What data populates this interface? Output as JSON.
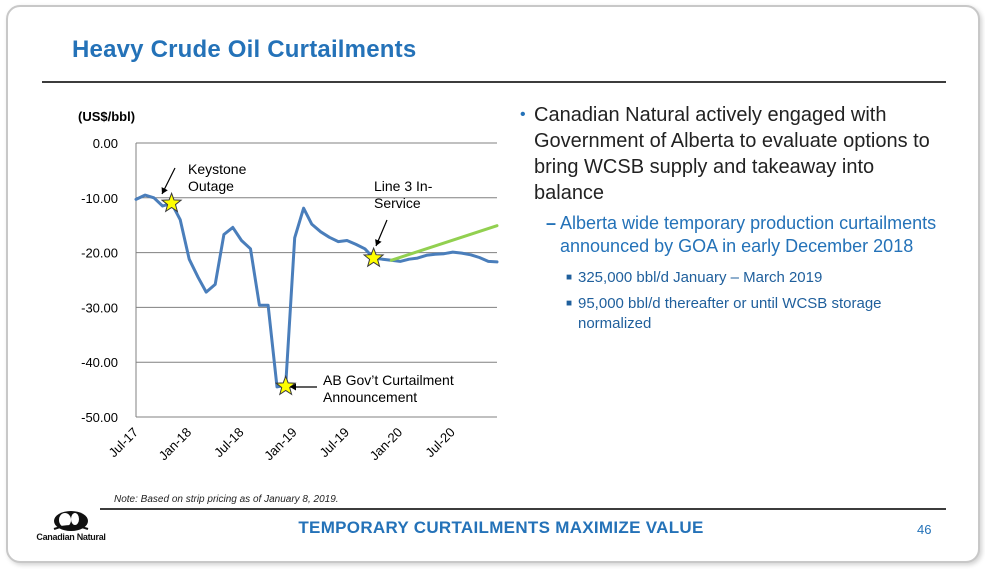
{
  "slide": {
    "title": "Heavy Crude Oil Curtailments",
    "note": "Note: Based on strip pricing as of January 8, 2019.",
    "footer": "TEMPORARY CURTAILMENTS MAXIMIZE VALUE",
    "page_number": "46",
    "logo_text": "Canadian Natural"
  },
  "bullets": {
    "main": "Canadian Natural actively engaged with Government of Alberta to evaluate options to bring WCSB supply and takeaway into balance",
    "sub": "Alberta wide temporary production curtailments announced by GOA in early December 2018",
    "subsub": [
      "325,000 bbl/d January – March 2019",
      "95,000 bbl/d thereafter or until WCSB storage normalized"
    ]
  },
  "colors": {
    "accent": "#2472b8",
    "series_main": "#4a7ebb",
    "series_forecast": "#92d050",
    "star": "#ffff00"
  },
  "chart_data": {
    "type": "line",
    "ylabel": "(US$/bbl)",
    "ylim": [
      -50,
      0
    ],
    "yticks": [
      0,
      -10,
      -20,
      -30,
      -40,
      -50
    ],
    "ytick_labels": [
      "0.00",
      "-10.00",
      "-20.00",
      "-30.00",
      "-40.00",
      "-50.00"
    ],
    "xlim": [
      "2017-07-01",
      "2020-12-01"
    ],
    "xticks": [
      "2017-07-01",
      "2018-01-01",
      "2018-07-01",
      "2019-01-01",
      "2019-07-01",
      "2020-01-01",
      "2020-07-01"
    ],
    "xtick_labels": [
      "Jul-17",
      "Jan-18",
      "Jul-18",
      "Jan-19",
      "Jul-19",
      "Jan-20",
      "Jul-20"
    ],
    "grid": true,
    "series": [
      {
        "x": [
          "2017-07-01",
          "2017-08-01",
          "2017-09-01",
          "2017-10-01",
          "2017-11-01",
          "2017-12-01",
          "2018-01-01",
          "2018-02-01",
          "2018-03-01",
          "2018-04-01",
          "2018-05-01",
          "2018-06-01",
          "2018-07-01",
          "2018-08-01",
          "2018-09-01",
          "2018-10-01",
          "2018-11-01",
          "2018-12-01",
          "2019-01-01",
          "2019-02-01",
          "2019-03-01",
          "2019-04-01",
          "2019-05-01",
          "2019-06-01",
          "2019-07-01",
          "2019-08-01",
          "2019-09-01",
          "2019-10-01",
          "2019-11-01",
          "2019-12-01",
          "2020-01-01",
          "2020-02-01",
          "2020-03-01",
          "2020-04-01",
          "2020-05-01",
          "2020-06-01",
          "2020-07-01",
          "2020-08-01",
          "2020-09-01",
          "2020-10-01",
          "2020-11-01",
          "2020-12-01"
        ],
        "values": [
          -10.3,
          -9.5,
          -10.0,
          -11.5,
          -11.0,
          -14.0,
          -21.2,
          -24.5,
          -27.2,
          -25.8,
          -16.7,
          -15.4,
          -17.8,
          -19.3,
          -29.6,
          -29.6,
          -44.5,
          -44.2,
          -17.3,
          -11.9,
          -14.8,
          -16.2,
          -17.2,
          -18.0,
          -17.8,
          -18.5,
          -19.3,
          -21.0,
          -21.2,
          -21.4,
          -21.6,
          -21.2,
          -21.0,
          -20.5,
          -20.3,
          -20.2,
          -19.9,
          -20.1,
          -20.4,
          -20.9,
          -21.6,
          -21.7
        ]
      },
      {
        "x": [
          "2019-12-01",
          "2020-12-01"
        ],
        "values": [
          -21.4,
          -15.1
        ]
      }
    ],
    "annotations": [
      {
        "text": [
          "Keystone",
          "Outage"
        ],
        "x": "2017-11-01",
        "y": -11.0
      },
      {
        "text": [
          "Line 3 In-",
          "Service"
        ],
        "x": "2019-10-01",
        "y": -21.0
      },
      {
        "text": [
          "AB Gov’t Curtailment",
          "Announcement"
        ],
        "x": "2018-12-01",
        "y": -44.4
      }
    ]
  }
}
